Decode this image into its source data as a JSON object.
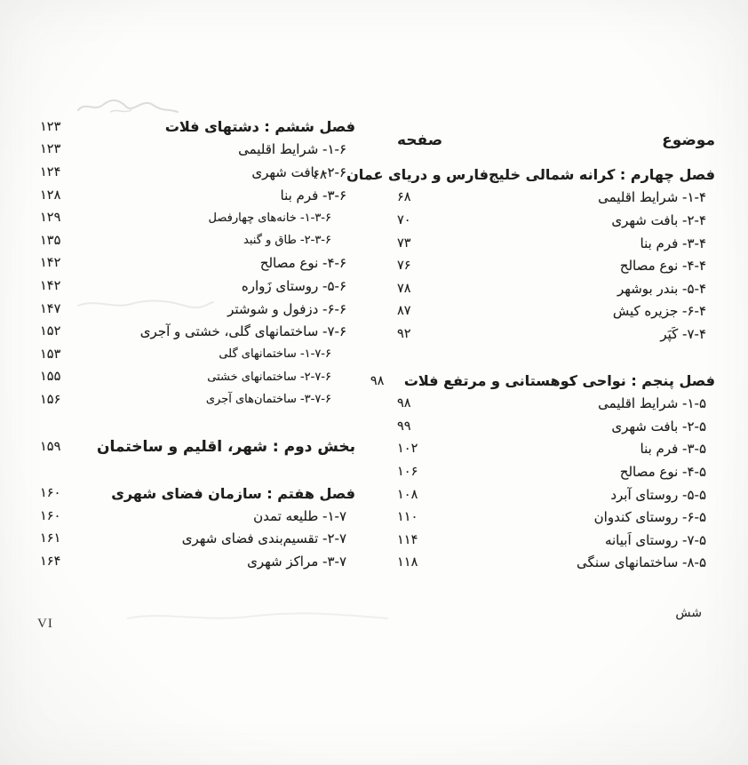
{
  "header": {
    "subject_label": "موضوع",
    "page_label": "صفحه"
  },
  "footer": {
    "page_word_persian": "شش",
    "page_roman": "VI"
  },
  "colors": {
    "paper": "#fdfdfb",
    "ink": "#1e1e1e"
  },
  "toc_right_column": [
    {
      "style": "chapter",
      "label": "فصل چهارم : کرانه شمالی خلیج‌فارس و دریای عمان",
      "page": "۶۸",
      "gap_before": false
    },
    {
      "style": "item",
      "label": "۱-۴- شرایط اقلیمی",
      "page": "۶۸",
      "gap_before": false
    },
    {
      "style": "item",
      "label": "۲-۴- بافت شهری",
      "page": "۷۰",
      "gap_before": false
    },
    {
      "style": "item",
      "label": "۳-۴- فرم بنا",
      "page": "۷۳",
      "gap_before": false
    },
    {
      "style": "item",
      "label": "۴-۴- نوع مصالح",
      "page": "۷۶",
      "gap_before": false
    },
    {
      "style": "item",
      "label": "۵-۴- بندر بوشهر",
      "page": "۷۸",
      "gap_before": false
    },
    {
      "style": "item",
      "label": "۶-۴- جزیره کیش",
      "page": "۸۷",
      "gap_before": false
    },
    {
      "style": "item",
      "label": "۷-۴- کَپَر",
      "page": "۹۲",
      "gap_before": false
    },
    {
      "style": "chapter",
      "label": "فصل پنجم : نواحی کوهستانی و مرتفع فلات",
      "page": "۹۸",
      "gap_before": true
    },
    {
      "style": "item",
      "label": "۱-۵- شرایط اقلیمی",
      "page": "۹۸",
      "gap_before": false
    },
    {
      "style": "item",
      "label": "۲-۵- بافت شهری",
      "page": "۹۹",
      "gap_before": false
    },
    {
      "style": "item",
      "label": "۳-۵- فرم بنا",
      "page": "۱۰۲",
      "gap_before": false
    },
    {
      "style": "item",
      "label": "۴-۵- نوع مصالح",
      "page": "۱۰۶",
      "gap_before": false
    },
    {
      "style": "item",
      "label": "۵-۵- روستای آبرد",
      "page": "۱۰۸",
      "gap_before": false
    },
    {
      "style": "item",
      "label": "۶-۵- روستای کندوان",
      "page": "۱۱۰",
      "gap_before": false
    },
    {
      "style": "item",
      "label": "۷-۵- روستای اَبیانه",
      "page": "۱۱۴",
      "gap_before": false
    },
    {
      "style": "item",
      "label": "۸-۵- ساختمانهای سنگی",
      "page": "۱۱۸",
      "gap_before": false
    }
  ],
  "toc_left_column": [
    {
      "style": "chapter",
      "label": "فصل ششم : دشتهای فلات",
      "page": "۱۲۳",
      "gap_before": false
    },
    {
      "style": "item",
      "label": "۱-۶- شرایط اقلیمی",
      "page": "۱۲۳",
      "gap_before": false
    },
    {
      "style": "item",
      "label": "۲-۶- بافت شهری",
      "page": "۱۲۴",
      "gap_before": false
    },
    {
      "style": "item",
      "label": "۳-۶- فرم بنا",
      "page": "۱۲۸",
      "gap_before": false
    },
    {
      "style": "subitem",
      "label": "۱-۳-۶- خانه‌های چهارفصل",
      "page": "۱۲۹",
      "gap_before": false
    },
    {
      "style": "subitem",
      "label": "۲-۳-۶- طاق و گنبد",
      "page": "۱۳۵",
      "gap_before": false
    },
    {
      "style": "item",
      "label": "۴-۶- نوع مصالح",
      "page": "۱۴۲",
      "gap_before": false
    },
    {
      "style": "item",
      "label": "۵-۶- روستای زَواره",
      "page": "۱۴۲",
      "gap_before": false
    },
    {
      "style": "item",
      "label": "۶-۶- دزفول و شوشتر",
      "page": "۱۴۷",
      "gap_before": false
    },
    {
      "style": "item",
      "label": "۷-۶- ساختمانهای گلی، خشتی و آجری",
      "page": "۱۵۲",
      "gap_before": false
    },
    {
      "style": "subitem",
      "label": "۱-۷-۶- ساختمانهای گلی",
      "page": "۱۵۳",
      "gap_before": false
    },
    {
      "style": "subitem",
      "label": "۲-۷-۶- ساختمانهای خشتی",
      "page": "۱۵۵",
      "gap_before": false
    },
    {
      "style": "subitem",
      "label": "۳-۷-۶- ساختمان‌های آجری",
      "page": "۱۵۶",
      "gap_before": false
    },
    {
      "style": "part",
      "label": "بخش دوم : شهر، اقلیم و ساختمان",
      "page": "۱۵۹",
      "gap_before": true
    },
    {
      "style": "chapter",
      "label": "فصل هفتم : سازمان فضای شهری",
      "page": "۱۶۰",
      "gap_before": true
    },
    {
      "style": "item",
      "label": "۱-۷- طلیعه تمدن",
      "page": "۱۶۰",
      "gap_before": false
    },
    {
      "style": "item",
      "label": "۲-۷- تقسیم‌بندی فضای شهری",
      "page": "۱۶۱",
      "gap_before": false
    },
    {
      "style": "item",
      "label": "۳-۷- مراکز شهری",
      "page": "۱۶۴",
      "gap_before": false
    }
  ]
}
